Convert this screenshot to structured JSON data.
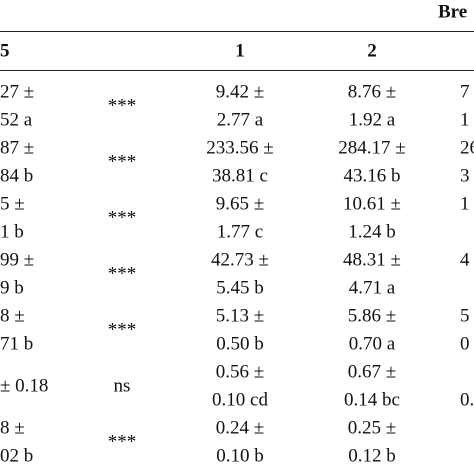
{
  "header": {
    "group": "Bre",
    "columns": [
      "5",
      "1",
      "2"
    ]
  },
  "rows": [
    {
      "left": [
        "27 ±",
        "52 a"
      ],
      "sig": "***",
      "c1": [
        "9.42 ±",
        "2.77 a"
      ],
      "c2": [
        "8.76 ±",
        "1.92 a"
      ],
      "c3": [
        "7",
        "1"
      ]
    },
    {
      "left": [
        "87 ±",
        "84 b"
      ],
      "sig": "***",
      "c1": [
        "233.56 ±",
        "38.81 c"
      ],
      "c2": [
        "284.17 ±",
        "43.16 b"
      ],
      "c3": [
        "26",
        "3"
      ]
    },
    {
      "left": [
        "5 ±",
        "1 b"
      ],
      "sig": "***",
      "c1": [
        "9.65 ±",
        "1.77 c"
      ],
      "c2": [
        "10.61 ±",
        "1.24 b"
      ],
      "c3": [
        "1"
      ]
    },
    {
      "left": [
        "99 ±",
        "9 b"
      ],
      "sig": "***",
      "c1": [
        "42.73 ±",
        "5.45 b"
      ],
      "c2": [
        "48.31 ±",
        "4.71 a"
      ],
      "c3": [
        "4"
      ]
    },
    {
      "left": [
        "8 ±",
        "71 b"
      ],
      "sig": "***",
      "c1": [
        "5.13 ±",
        "0.50 b"
      ],
      "c2": [
        "5.86 ±",
        "0.70 a"
      ],
      "c3": [
        "5",
        "0"
      ]
    },
    {
      "left": [
        "± 0.18"
      ],
      "sig": "ns",
      "c1": [
        "0.56 ±",
        "0.10 cd"
      ],
      "c2": [
        "0.67 ±",
        "0.14 bc"
      ],
      "c3": [
        null,
        "0."
      ]
    },
    {
      "left": [
        "8 ±",
        "02 b"
      ],
      "sig": "***",
      "c1": [
        "0.24 ±",
        "0.10 b"
      ],
      "c2": [
        "0.25 ±",
        "0.12 b"
      ],
      "c3": []
    }
  ]
}
